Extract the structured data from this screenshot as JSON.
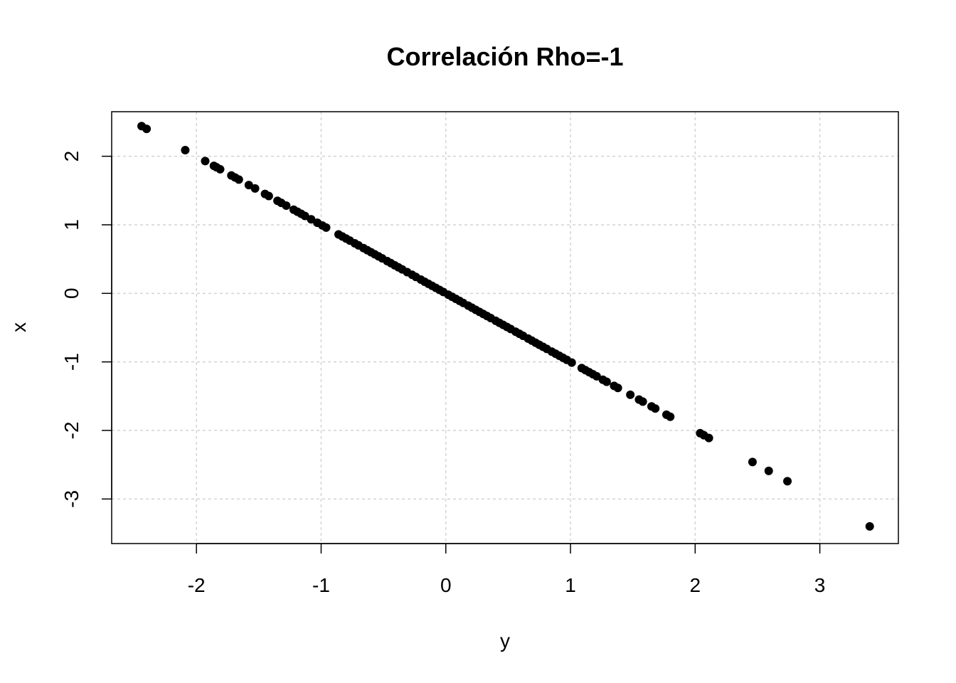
{
  "chart_data": {
    "type": "scatter",
    "title": "Correlación Rho=-1",
    "xlabel": "y",
    "ylabel": "x",
    "xlim": [
      -2.68,
      3.63
    ],
    "ylim": [
      -3.65,
      2.65
    ],
    "xticks": [
      -2,
      -1,
      0,
      1,
      2,
      3
    ],
    "yticks": [
      -3,
      -2,
      -1,
      0,
      1,
      2
    ],
    "xtick_labels": [
      "-2",
      "-1",
      "0",
      "1",
      "2",
      "3"
    ],
    "ytick_labels": [
      "-3",
      "-2",
      "-1",
      "0",
      "1",
      "2"
    ],
    "grid": true,
    "marker_color": "#000000",
    "grid_color": "#d3d3d3",
    "points": [
      {
        "x": -2.44,
        "y": 2.44
      },
      {
        "x": -2.4,
        "y": 2.4
      },
      {
        "x": -2.09,
        "y": 2.09
      },
      {
        "x": -1.93,
        "y": 1.93
      },
      {
        "x": -1.86,
        "y": 1.86
      },
      {
        "x": -1.84,
        "y": 1.84
      },
      {
        "x": -1.81,
        "y": 1.81
      },
      {
        "x": -1.72,
        "y": 1.72
      },
      {
        "x": -1.69,
        "y": 1.69
      },
      {
        "x": -1.66,
        "y": 1.66
      },
      {
        "x": -1.58,
        "y": 1.58
      },
      {
        "x": -1.53,
        "y": 1.53
      },
      {
        "x": -1.45,
        "y": 1.45
      },
      {
        "x": -1.42,
        "y": 1.42
      },
      {
        "x": -1.35,
        "y": 1.35
      },
      {
        "x": -1.32,
        "y": 1.32
      },
      {
        "x": -1.28,
        "y": 1.28
      },
      {
        "x": -1.22,
        "y": 1.22
      },
      {
        "x": -1.19,
        "y": 1.19
      },
      {
        "x": -1.16,
        "y": 1.16
      },
      {
        "x": -1.13,
        "y": 1.13
      },
      {
        "x": -1.08,
        "y": 1.08
      },
      {
        "x": -1.03,
        "y": 1.03
      },
      {
        "x": -0.99,
        "y": 0.99
      },
      {
        "x": -0.96,
        "y": 0.96
      },
      {
        "x": -0.86,
        "y": 0.86
      },
      {
        "x": -0.83,
        "y": 0.83
      },
      {
        "x": -0.8,
        "y": 0.8
      },
      {
        "x": -0.77,
        "y": 0.77
      },
      {
        "x": -0.73,
        "y": 0.73
      },
      {
        "x": -0.7,
        "y": 0.7
      },
      {
        "x": -0.66,
        "y": 0.66
      },
      {
        "x": -0.63,
        "y": 0.63
      },
      {
        "x": -0.6,
        "y": 0.6
      },
      {
        "x": -0.57,
        "y": 0.57
      },
      {
        "x": -0.54,
        "y": 0.54
      },
      {
        "x": -0.51,
        "y": 0.51
      },
      {
        "x": -0.47,
        "y": 0.47
      },
      {
        "x": -0.44,
        "y": 0.44
      },
      {
        "x": -0.41,
        "y": 0.41
      },
      {
        "x": -0.38,
        "y": 0.38
      },
      {
        "x": -0.35,
        "y": 0.35
      },
      {
        "x": -0.31,
        "y": 0.31
      },
      {
        "x": -0.27,
        "y": 0.27
      },
      {
        "x": -0.24,
        "y": 0.24
      },
      {
        "x": -0.2,
        "y": 0.2
      },
      {
        "x": -0.17,
        "y": 0.17
      },
      {
        "x": -0.14,
        "y": 0.14
      },
      {
        "x": -0.11,
        "y": 0.11
      },
      {
        "x": -0.08,
        "y": 0.08
      },
      {
        "x": -0.05,
        "y": 0.05
      },
      {
        "x": -0.02,
        "y": 0.02
      },
      {
        "x": 0.02,
        "y": -0.02
      },
      {
        "x": 0.05,
        "y": -0.05
      },
      {
        "x": 0.08,
        "y": -0.08
      },
      {
        "x": 0.11,
        "y": -0.11
      },
      {
        "x": 0.14,
        "y": -0.14
      },
      {
        "x": 0.18,
        "y": -0.18
      },
      {
        "x": 0.21,
        "y": -0.21
      },
      {
        "x": 0.24,
        "y": -0.24
      },
      {
        "x": 0.27,
        "y": -0.27
      },
      {
        "x": 0.3,
        "y": -0.3
      },
      {
        "x": 0.33,
        "y": -0.33
      },
      {
        "x": 0.36,
        "y": -0.36
      },
      {
        "x": 0.4,
        "y": -0.4
      },
      {
        "x": 0.43,
        "y": -0.43
      },
      {
        "x": 0.46,
        "y": -0.46
      },
      {
        "x": 0.49,
        "y": -0.49
      },
      {
        "x": 0.52,
        "y": -0.52
      },
      {
        "x": 0.56,
        "y": -0.56
      },
      {
        "x": 0.59,
        "y": -0.59
      },
      {
        "x": 0.62,
        "y": -0.62
      },
      {
        "x": 0.66,
        "y": -0.66
      },
      {
        "x": 0.69,
        "y": -0.69
      },
      {
        "x": 0.72,
        "y": -0.72
      },
      {
        "x": 0.75,
        "y": -0.75
      },
      {
        "x": 0.78,
        "y": -0.78
      },
      {
        "x": 0.81,
        "y": -0.81
      },
      {
        "x": 0.85,
        "y": -0.85
      },
      {
        "x": 0.88,
        "y": -0.88
      },
      {
        "x": 0.91,
        "y": -0.91
      },
      {
        "x": 0.94,
        "y": -0.94
      },
      {
        "x": 0.97,
        "y": -0.97
      },
      {
        "x": 1.01,
        "y": -1.01
      },
      {
        "x": 1.09,
        "y": -1.09
      },
      {
        "x": 1.12,
        "y": -1.12
      },
      {
        "x": 1.15,
        "y": -1.15
      },
      {
        "x": 1.18,
        "y": -1.18
      },
      {
        "x": 1.21,
        "y": -1.21
      },
      {
        "x": 1.26,
        "y": -1.26
      },
      {
        "x": 1.29,
        "y": -1.29
      },
      {
        "x": 1.35,
        "y": -1.35
      },
      {
        "x": 1.38,
        "y": -1.38
      },
      {
        "x": 1.48,
        "y": -1.48
      },
      {
        "x": 1.55,
        "y": -1.55
      },
      {
        "x": 1.58,
        "y": -1.58
      },
      {
        "x": 1.65,
        "y": -1.65
      },
      {
        "x": 1.68,
        "y": -1.68
      },
      {
        "x": 1.77,
        "y": -1.77
      },
      {
        "x": 1.8,
        "y": -1.8
      },
      {
        "x": 2.04,
        "y": -2.04
      },
      {
        "x": 2.07,
        "y": -2.07
      },
      {
        "x": 2.11,
        "y": -2.11
      },
      {
        "x": 2.46,
        "y": -2.46
      },
      {
        "x": 2.59,
        "y": -2.59
      },
      {
        "x": 2.74,
        "y": -2.74
      },
      {
        "x": 3.4,
        "y": -3.4
      }
    ]
  }
}
